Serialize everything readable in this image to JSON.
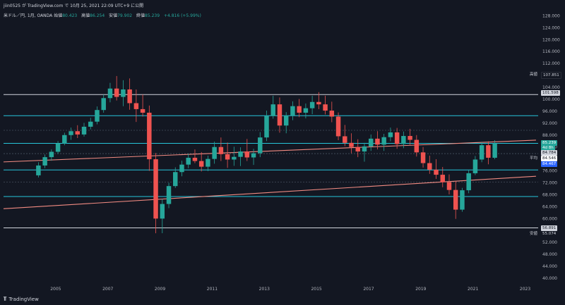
{
  "header": {
    "published_line": "jiin0525 が TradingView.com で 10月 25, 2021 22:09 UTC+9 に公開"
  },
  "legend": {
    "symbol": "米ドル／円, 1月, OANDA",
    "open_label": "始値",
    "open_value": "80.423",
    "high_label": "高値",
    "high_value": "86.254",
    "low_label": "安値",
    "low_value": "79.902",
    "close_label": "終値",
    "close_value": "85.239",
    "change": "+4.816 (+5.99%)"
  },
  "price_axis": {
    "ticks": [
      "128.000",
      "124.000",
      "120.000",
      "116.000",
      "112.000",
      "108.000",
      "104.000",
      "100.000",
      "96.000",
      "92.000",
      "88.000",
      "84.000",
      "80.000",
      "76.000",
      "72.000",
      "68.000",
      "64.000",
      "60.000",
      "56.000",
      "52.000",
      "48.000",
      "44.000",
      "40.000"
    ],
    "high_tag_label": "高値",
    "high_tag_value": "107.851",
    "level_101": "101.598",
    "last_price": "85.239",
    "countdown": "4d 8h",
    "level_84_784": "84.784",
    "avg_label": "平均",
    "avg_value": "84.546",
    "level_84_467": "84.467",
    "level_56": "56.891",
    "low_tag_label": "安値",
    "low_tag_value": "55.074"
  },
  "time_axis": {
    "ticks": [
      "2005",
      "2007",
      "2009",
      "2011",
      "2013",
      "2015",
      "2017",
      "2019",
      "2021",
      "2023"
    ]
  },
  "colors": {
    "background": "#131722",
    "up": "#26a69a",
    "down": "#ef5350",
    "cyan_lines": "#26c6da",
    "trend_lines": "#f28b82",
    "white_lines": "#d1d4dc",
    "orange": "#ff9800"
  },
  "footer": {
    "brand": "TradingView",
    "logo_icon": "tradingview-logo-icon"
  },
  "chart_data": {
    "type": "candlestick",
    "title": "米ドル／円, 1月, OANDA",
    "x_range": [
      "2003-01",
      "2023-06"
    ],
    "ylim": [
      38,
      130
    ],
    "horizontal_levels": [
      {
        "value": 101.598,
        "color": "white"
      },
      {
        "value": 94.5,
        "color": "cyan"
      },
      {
        "value": 85.239,
        "color": "cyan"
      },
      {
        "value": 76.3,
        "color": "cyan"
      },
      {
        "value": 67.4,
        "color": "cyan"
      },
      {
        "value": 56.891,
        "color": "white"
      }
    ],
    "trend_lines": [
      {
        "from": [
          "2003-01",
          79.0
        ],
        "to": [
          "2023-06",
          86.3
        ]
      },
      {
        "from": [
          "2003-01",
          63.3
        ],
        "to": [
          "2023-06",
          74.2
        ]
      }
    ],
    "candles": [
      {
        "x": "2004-04",
        "o": 74.5,
        "h": 78.9,
        "l": 73.8,
        "c": 77.8
      },
      {
        "x": "2004-07",
        "o": 77.8,
        "h": 81.5,
        "l": 76.9,
        "c": 80.6
      },
      {
        "x": "2004-10",
        "o": 80.6,
        "h": 83.2,
        "l": 79.4,
        "c": 82.4
      },
      {
        "x": "2005-01",
        "o": 82.4,
        "h": 86.0,
        "l": 81.7,
        "c": 85.2
      },
      {
        "x": "2005-04",
        "o": 85.2,
        "h": 88.8,
        "l": 84.6,
        "c": 88.0
      },
      {
        "x": "2005-07",
        "o": 88.0,
        "h": 90.5,
        "l": 86.4,
        "c": 89.3
      },
      {
        "x": "2005-10",
        "o": 89.3,
        "h": 91.3,
        "l": 87.0,
        "c": 88.2
      },
      {
        "x": "2006-01",
        "o": 88.2,
        "h": 92.1,
        "l": 87.5,
        "c": 90.8
      },
      {
        "x": "2006-04",
        "o": 90.8,
        "h": 93.8,
        "l": 89.9,
        "c": 92.5
      },
      {
        "x": "2006-07",
        "o": 92.5,
        "h": 97.6,
        "l": 91.6,
        "c": 96.4
      },
      {
        "x": "2006-10",
        "o": 96.4,
        "h": 101.6,
        "l": 95.5,
        "c": 100.4
      },
      {
        "x": "2007-01",
        "o": 100.4,
        "h": 105.5,
        "l": 99.0,
        "c": 103.6
      },
      {
        "x": "2007-04",
        "o": 103.6,
        "h": 107.8,
        "l": 99.6,
        "c": 100.8
      },
      {
        "x": "2007-07",
        "o": 100.8,
        "h": 106.4,
        "l": 97.7,
        "c": 103.3
      },
      {
        "x": "2007-10",
        "o": 103.3,
        "h": 107.0,
        "l": 96.5,
        "c": 98.7
      },
      {
        "x": "2008-01",
        "o": 98.7,
        "h": 103.3,
        "l": 92.4,
        "c": 96.7
      },
      {
        "x": "2008-04",
        "o": 96.7,
        "h": 101.6,
        "l": 94.2,
        "c": 95.5
      },
      {
        "x": "2008-07",
        "o": 95.5,
        "h": 97.9,
        "l": 76.0,
        "c": 79.9
      },
      {
        "x": "2008-10",
        "o": 79.9,
        "h": 82.0,
        "l": 55.1,
        "c": 60.0
      },
      {
        "x": "2009-01",
        "o": 60.0,
        "h": 66.6,
        "l": 55.1,
        "c": 64.9
      },
      {
        "x": "2009-04",
        "o": 64.9,
        "h": 72.0,
        "l": 63.5,
        "c": 70.9
      },
      {
        "x": "2009-07",
        "o": 70.9,
        "h": 77.2,
        "l": 70.3,
        "c": 75.6
      },
      {
        "x": "2009-10",
        "o": 75.6,
        "h": 79.4,
        "l": 74.2,
        "c": 78.1
      },
      {
        "x": "2010-01",
        "o": 78.1,
        "h": 81.8,
        "l": 76.9,
        "c": 80.4
      },
      {
        "x": "2010-04",
        "o": 80.4,
        "h": 83.2,
        "l": 78.6,
        "c": 79.3
      },
      {
        "x": "2010-07",
        "o": 79.3,
        "h": 82.3,
        "l": 75.8,
        "c": 77.4
      },
      {
        "x": "2010-10",
        "o": 77.4,
        "h": 81.1,
        "l": 75.9,
        "c": 80.0
      },
      {
        "x": "2011-01",
        "o": 80.0,
        "h": 85.8,
        "l": 78.4,
        "c": 84.0
      },
      {
        "x": "2011-04",
        "o": 84.0,
        "h": 87.2,
        "l": 79.3,
        "c": 81.6
      },
      {
        "x": "2011-07",
        "o": 81.6,
        "h": 85.5,
        "l": 77.0,
        "c": 79.8
      },
      {
        "x": "2011-10",
        "o": 79.8,
        "h": 84.1,
        "l": 77.7,
        "c": 80.7
      },
      {
        "x": "2012-01",
        "o": 80.7,
        "h": 83.9,
        "l": 77.6,
        "c": 82.5
      },
      {
        "x": "2012-04",
        "o": 82.5,
        "h": 86.7,
        "l": 79.3,
        "c": 80.5
      },
      {
        "x": "2012-07",
        "o": 80.5,
        "h": 83.4,
        "l": 78.0,
        "c": 81.9
      },
      {
        "x": "2012-10",
        "o": 81.9,
        "h": 89.0,
        "l": 80.6,
        "c": 87.2
      },
      {
        "x": "2013-01",
        "o": 87.2,
        "h": 96.2,
        "l": 86.0,
        "c": 94.4
      },
      {
        "x": "2013-04",
        "o": 94.4,
        "h": 101.2,
        "l": 93.5,
        "c": 98.3
      },
      {
        "x": "2013-07",
        "o": 98.3,
        "h": 100.6,
        "l": 88.8,
        "c": 91.2
      },
      {
        "x": "2013-10",
        "o": 91.2,
        "h": 95.7,
        "l": 88.6,
        "c": 94.5
      },
      {
        "x": "2014-01",
        "o": 94.5,
        "h": 99.3,
        "l": 93.0,
        "c": 97.7
      },
      {
        "x": "2014-04",
        "o": 97.7,
        "h": 100.1,
        "l": 94.0,
        "c": 95.5
      },
      {
        "x": "2014-07",
        "o": 95.5,
        "h": 98.6,
        "l": 93.6,
        "c": 97.0
      },
      {
        "x": "2014-10",
        "o": 97.0,
        "h": 101.2,
        "l": 95.0,
        "c": 99.1
      },
      {
        "x": "2015-01",
        "o": 99.1,
        "h": 102.4,
        "l": 96.7,
        "c": 98.3
      },
      {
        "x": "2015-04",
        "o": 98.3,
        "h": 101.2,
        "l": 94.9,
        "c": 96.2
      },
      {
        "x": "2015-07",
        "o": 96.2,
        "h": 99.2,
        "l": 92.3,
        "c": 94.2
      },
      {
        "x": "2015-10",
        "o": 94.2,
        "h": 95.6,
        "l": 86.3,
        "c": 87.6
      },
      {
        "x": "2016-01",
        "o": 87.6,
        "h": 91.4,
        "l": 84.3,
        "c": 85.4
      },
      {
        "x": "2016-04",
        "o": 85.4,
        "h": 88.6,
        "l": 81.9,
        "c": 84.0
      },
      {
        "x": "2016-07",
        "o": 84.0,
        "h": 86.6,
        "l": 80.6,
        "c": 82.5
      },
      {
        "x": "2016-10",
        "o": 82.5,
        "h": 85.4,
        "l": 79.1,
        "c": 84.2
      },
      {
        "x": "2017-01",
        "o": 84.2,
        "h": 88.2,
        "l": 82.7,
        "c": 86.8
      },
      {
        "x": "2017-04",
        "o": 86.8,
        "h": 89.3,
        "l": 83.2,
        "c": 84.8
      },
      {
        "x": "2017-07",
        "o": 84.8,
        "h": 88.4,
        "l": 82.7,
        "c": 87.3
      },
      {
        "x": "2017-10",
        "o": 87.3,
        "h": 90.5,
        "l": 85.9,
        "c": 88.9
      },
      {
        "x": "2018-01",
        "o": 88.9,
        "h": 90.4,
        "l": 83.4,
        "c": 85.0
      },
      {
        "x": "2018-04",
        "o": 85.0,
        "h": 89.2,
        "l": 83.6,
        "c": 87.7
      },
      {
        "x": "2018-07",
        "o": 87.7,
        "h": 90.1,
        "l": 84.8,
        "c": 86.4
      },
      {
        "x": "2018-10",
        "o": 86.4,
        "h": 88.0,
        "l": 80.8,
        "c": 82.2
      },
      {
        "x": "2019-01",
        "o": 82.2,
        "h": 84.0,
        "l": 77.1,
        "c": 78.6
      },
      {
        "x": "2019-04",
        "o": 78.6,
        "h": 81.1,
        "l": 75.0,
        "c": 76.4
      },
      {
        "x": "2019-07",
        "o": 76.4,
        "h": 79.9,
        "l": 73.3,
        "c": 74.7
      },
      {
        "x": "2019-10",
        "o": 74.7,
        "h": 77.3,
        "l": 70.5,
        "c": 72.2
      },
      {
        "x": "2020-01",
        "o": 72.2,
        "h": 74.8,
        "l": 68.1,
        "c": 69.6
      },
      {
        "x": "2020-04",
        "o": 69.6,
        "h": 72.4,
        "l": 59.9,
        "c": 63.0
      },
      {
        "x": "2020-07",
        "o": 63.0,
        "h": 70.3,
        "l": 62.3,
        "c": 69.5
      },
      {
        "x": "2020-10",
        "o": 69.5,
        "h": 76.3,
        "l": 68.5,
        "c": 75.2
      },
      {
        "x": "2021-01",
        "o": 75.2,
        "h": 81.0,
        "l": 74.6,
        "c": 79.8
      },
      {
        "x": "2021-04",
        "o": 79.8,
        "h": 85.6,
        "l": 78.9,
        "c": 84.6
      },
      {
        "x": "2021-07",
        "o": 84.6,
        "h": 85.9,
        "l": 78.2,
        "c": 80.4
      },
      {
        "x": "2021-10",
        "o": 80.4,
        "h": 86.3,
        "l": 79.9,
        "c": 85.2
      }
    ]
  }
}
